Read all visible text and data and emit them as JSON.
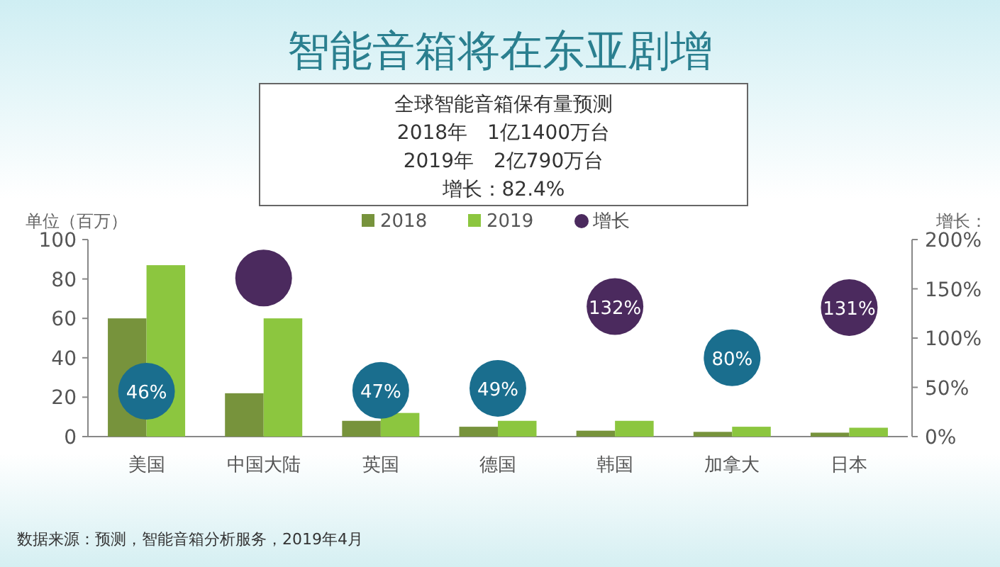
{
  "chart_data": {
    "type": "bar",
    "title": "智能音箱将在东亚剧增",
    "annotations": [
      "全球智能音箱保有量预测",
      "2018年　1亿1400万台",
      "2019年　2亿790万台",
      "增长：82.4%",
      "数据来源：预测，智能音箱分析服务，2019年4月"
    ],
    "ylabel": "单位（百万）",
    "y2label": "增长：",
    "categories": [
      "美国",
      "中国大陆",
      "英国",
      "德国",
      "韩国",
      "加拿大",
      "日本"
    ],
    "series": [
      {
        "name": "2018",
        "color": "#77933c",
        "values": [
          60,
          22,
          8,
          5,
          3,
          2.4,
          2
        ]
      },
      {
        "name": "2019",
        "color": "#8cc63f",
        "values": [
          87,
          60,
          12,
          8,
          8,
          5,
          4.5
        ]
      },
      {
        "name": "增长",
        "type": "scatter",
        "axis": "y2",
        "color": "#4b2a5e",
        "colors": [
          "#1a6e8e",
          "#4b2a5e",
          "#1a6e8e",
          "#1a6e8e",
          "#4b2a5e",
          "#1a6e8e",
          "#4b2a5e"
        ],
        "values": [
          46,
          161,
          47,
          49,
          132,
          80,
          131
        ],
        "value_labels": [
          "46%",
          null,
          "47%",
          "49%",
          "132%",
          "80%",
          "131%"
        ]
      }
    ],
    "ylim": [
      0,
      100
    ],
    "yticks": [
      0,
      20,
      40,
      60,
      80,
      100
    ],
    "y2lim": [
      0,
      200
    ],
    "y2ticks": [
      {
        "value": 0,
        "label": "0%"
      },
      {
        "value": 50,
        "label": "50%"
      },
      {
        "value": 100,
        "label": "100%"
      },
      {
        "value": 150,
        "label": "150%"
      },
      {
        "value": 200,
        "label": "200%"
      }
    ],
    "legend": "top"
  }
}
